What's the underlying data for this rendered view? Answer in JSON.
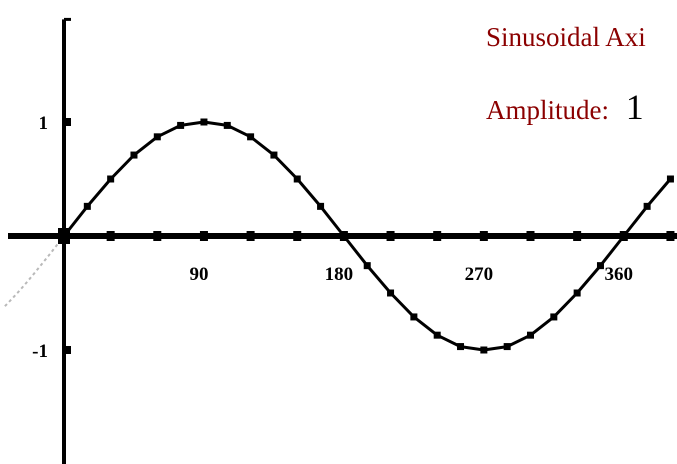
{
  "colors": {
    "axis": "#000000",
    "curve": "#000000",
    "info_text": "#8b0000",
    "value_text": "#000000"
  },
  "info": {
    "title": "Sinusoidal Axi",
    "amplitude_label": "Amplitude:",
    "amplitude_value": "1"
  },
  "chart_data": {
    "type": "line",
    "title": "Sinusoidal Axi",
    "xlabel": "",
    "ylabel": "",
    "xlim": [
      0,
      400
    ],
    "ylim": [
      -2.05,
      1.9
    ],
    "grid": false,
    "x_ticks": [
      0,
      30,
      60,
      90,
      120,
      150,
      180,
      210,
      240,
      270,
      300,
      330,
      360,
      390
    ],
    "x_tick_labels": [
      {
        "x": 90,
        "label": "90"
      },
      {
        "x": 180,
        "label": "180"
      },
      {
        "x": 270,
        "label": "270"
      },
      {
        "x": 360,
        "label": "360"
      }
    ],
    "y_tick_labels": [
      {
        "y": 1,
        "label": "1"
      },
      {
        "y": -1,
        "label": "-1"
      }
    ],
    "series": [
      {
        "values": [
          {
            "x": 0,
            "y": 0
          },
          {
            "x": 15,
            "y": 0.26
          },
          {
            "x": 30,
            "y": 0.5
          },
          {
            "x": 45,
            "y": 0.71
          },
          {
            "x": 60,
            "y": 0.87
          },
          {
            "x": 75,
            "y": 0.97
          },
          {
            "x": 90,
            "y": 1
          },
          {
            "x": 105,
            "y": 0.97
          },
          {
            "x": 120,
            "y": 0.87
          },
          {
            "x": 135,
            "y": 0.71
          },
          {
            "x": 150,
            "y": 0.5
          },
          {
            "x": 165,
            "y": 0.26
          },
          {
            "x": 180,
            "y": 0
          },
          {
            "x": 195,
            "y": -0.26
          },
          {
            "x": 210,
            "y": -0.5
          },
          {
            "x": 225,
            "y": -0.71
          },
          {
            "x": 240,
            "y": -0.87
          },
          {
            "x": 255,
            "y": -0.97
          },
          {
            "x": 270,
            "y": -1
          },
          {
            "x": 285,
            "y": -0.97
          },
          {
            "x": 300,
            "y": -0.87
          },
          {
            "x": 315,
            "y": -0.71
          },
          {
            "x": 330,
            "y": -0.5
          },
          {
            "x": 345,
            "y": -0.26
          },
          {
            "x": 360,
            "y": 0
          },
          {
            "x": 375,
            "y": 0.26
          },
          {
            "x": 390,
            "y": 0.5
          }
        ]
      }
    ]
  }
}
